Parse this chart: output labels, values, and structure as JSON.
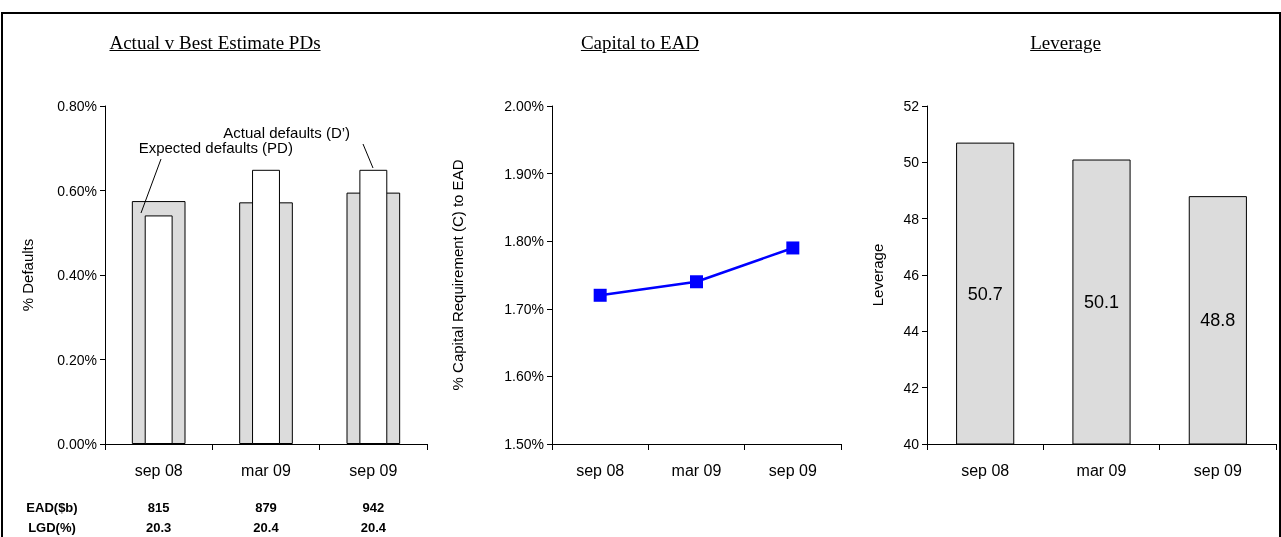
{
  "chart_data": [
    {
      "type": "bar",
      "title": "Actual v Best Estimate PDs",
      "ylabel": "% Defaults",
      "categories": [
        "sep 08",
        "mar 09",
        "sep 09"
      ],
      "series": [
        {
          "name": "Expected defaults (PD)",
          "color": "#dcdcdc",
          "values": [
            0.575,
            0.572,
            0.595
          ]
        },
        {
          "name": "Actual defaults (D’)",
          "color": "#ffffff",
          "values": [
            0.541,
            0.649,
            0.649
          ]
        }
      ],
      "ylim": [
        0,
        0.8
      ],
      "yticks": [
        {
          "value": 0,
          "label": "0.00%"
        },
        {
          "value": 0.2,
          "label": "0.20%"
        },
        {
          "value": 0.4,
          "label": "0.40%"
        },
        {
          "value": 0.6,
          "label": "0.60%"
        },
        {
          "value": 0.8,
          "label": "0.80%"
        }
      ],
      "grid": false,
      "legend": false,
      "annotations": [
        "EAD($b)",
        "815",
        "879",
        "942",
        "LGD(%)",
        "20.3",
        "20.4",
        "20.4"
      ]
    },
    {
      "type": "line",
      "title": "Capital to EAD",
      "ylabel": "% Capital Requirement (C) to EAD",
      "categories": [
        "sep 08",
        "mar 09",
        "sep 09"
      ],
      "series": [
        {
          "color": "#0000ff",
          "values": [
            1.72,
            1.74,
            1.79
          ]
        }
      ],
      "ylim": [
        1.5,
        2.0
      ],
      "yticks": [
        {
          "value": 1.5,
          "label": "1.50%"
        },
        {
          "value": 1.6,
          "label": "1.60%"
        },
        {
          "value": 1.7,
          "label": "1.70%"
        },
        {
          "value": 1.8,
          "label": "1.80%"
        },
        {
          "value": 1.9,
          "label": "1.90%"
        },
        {
          "value": 2.0,
          "label": "2.00%"
        }
      ],
      "marker": "square",
      "line_style": "solid",
      "grid": false,
      "legend": false
    },
    {
      "type": "bar",
      "title": "Leverage",
      "ylabel": "Leverage",
      "categories": [
        "sep 08",
        "mar 09",
        "sep 09"
      ],
      "series": [
        {
          "color": "#dcdcdc",
          "values": [
            50.7,
            50.1,
            48.8
          ]
        }
      ],
      "ylim": [
        40,
        52
      ],
      "yticks": [
        40,
        42,
        44,
        46,
        48,
        50,
        52
      ],
      "data_labels": true,
      "grid": false,
      "legend": false
    }
  ]
}
